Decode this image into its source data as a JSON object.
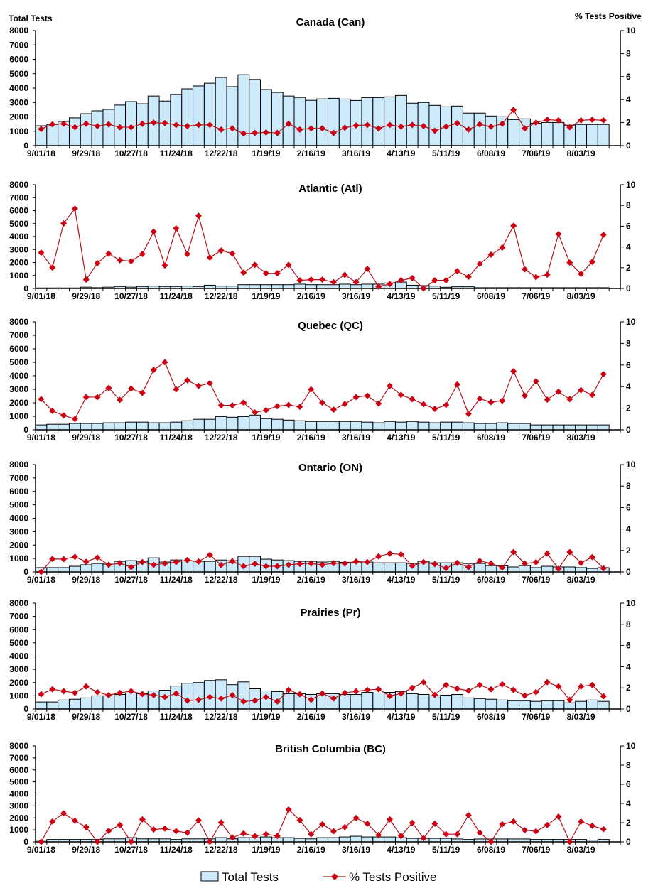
{
  "header": {
    "left_axis_title": "Total Tests",
    "right_axis_title": "% Tests Positive"
  },
  "legend": {
    "bars_label": "Total Tests",
    "line_label": "% Tests Positive"
  },
  "colors": {
    "bar_fill": "#cdeafb",
    "bar_stroke": "#000000",
    "line": "#b5121b",
    "marker": "#cc0011"
  },
  "chart_data": [
    {
      "type": "bar+line",
      "title": "Canada (Can)",
      "x_tick_labels": [
        "9/01/18",
        "9/29/18",
        "10/27/18",
        "11/24/18",
        "12/22/18",
        "1/19/19",
        "2/16/19",
        "3/16/19",
        "4/13/19",
        "5/11/19",
        "6/08/19",
        "7/06/19",
        "8/03/19"
      ],
      "left_ylim": [
        0,
        8000
      ],
      "left_ticks": [
        "0",
        "1000",
        "2000",
        "3000",
        "4000",
        "5000",
        "6000",
        "7000",
        "8000"
      ],
      "right_ylim": [
        0,
        10
      ],
      "right_ticks": [
        "0",
        "2",
        "4",
        "6",
        "8",
        "10"
      ],
      "series": [
        {
          "name": "Total Tests",
          "axis": "left",
          "type": "bar",
          "values": [
            1380,
            1470,
            1680,
            1930,
            2220,
            2420,
            2520,
            2820,
            3060,
            2910,
            3450,
            3100,
            3550,
            3950,
            4150,
            4340,
            4740,
            4100,
            4930,
            4600,
            3900,
            3700,
            3450,
            3350,
            3150,
            3250,
            3290,
            3240,
            3140,
            3340,
            3340,
            3390,
            3490,
            2950,
            3000,
            2800,
            2700,
            2750,
            2260,
            2260,
            2060,
            2010,
            1810,
            1860,
            1560,
            1610,
            1610,
            1420,
            1470,
            1470,
            1470
          ]
        },
        {
          "name": "% Tests Positive",
          "axis": "right",
          "type": "line",
          "values": [
            1.44,
            1.85,
            1.9,
            1.6,
            1.9,
            1.7,
            1.85,
            1.6,
            1.6,
            1.9,
            2.0,
            1.95,
            1.8,
            1.7,
            1.8,
            1.8,
            1.4,
            1.5,
            1.05,
            1.1,
            1.15,
            1.1,
            1.9,
            1.4,
            1.5,
            1.5,
            1.1,
            1.55,
            1.75,
            1.8,
            1.5,
            1.8,
            1.65,
            1.8,
            1.7,
            1.3,
            1.65,
            1.95,
            1.4,
            1.85,
            1.65,
            1.9,
            3.1,
            1.5,
            2.0,
            2.25,
            2.2,
            1.6,
            2.2,
            2.25,
            2.2
          ]
        }
      ]
    },
    {
      "type": "bar+line",
      "title": "Atlantic (Atl)",
      "x_tick_labels": [
        "9/01/18",
        "9/29/18",
        "10/27/18",
        "11/24/18",
        "12/22/18",
        "1/19/19",
        "2/16/19",
        "3/16/19",
        "4/13/19",
        "5/11/19",
        "6/08/19",
        "7/06/19",
        "8/03/19"
      ],
      "left_ylim": [
        0,
        8000
      ],
      "left_ticks": [
        "0",
        "1000",
        "2000",
        "3000",
        "4000",
        "5000",
        "6000",
        "7000",
        "8000"
      ],
      "right_ylim": [
        0,
        10
      ],
      "right_ticks": [
        "0",
        "2",
        "4",
        "6",
        "8",
        "10"
      ],
      "series": [
        {
          "name": "Total Tests",
          "axis": "left",
          "type": "bar",
          "values": [
            40,
            40,
            40,
            40,
            100,
            60,
            100,
            150,
            100,
            150,
            180,
            150,
            150,
            180,
            150,
            250,
            180,
            180,
            290,
            290,
            290,
            290,
            290,
            330,
            290,
            290,
            290,
            330,
            290,
            330,
            330,
            420,
            490,
            250,
            220,
            180,
            90,
            130,
            130,
            60,
            60,
            60,
            60,
            60,
            60,
            60,
            60,
            60,
            60,
            60,
            60
          ]
        },
        {
          "name": "% Tests Positive",
          "axis": "right",
          "type": "line",
          "values": [
            3.45,
            2.0,
            6.27,
            7.69,
            0.85,
            2.43,
            3.36,
            2.72,
            2.63,
            3.32,
            5.47,
            2.22,
            5.79,
            3.32,
            7.0,
            2.97,
            3.66,
            3.36,
            1.53,
            2.27,
            1.46,
            1.46,
            2.27,
            0.78,
            0.85,
            0.85,
            0.6,
            1.3,
            0.6,
            1.88,
            0.18,
            0.43,
            0.78,
            1.0,
            0,
            0.78,
            0.78,
            1.67,
            1.12,
            2.36,
            3.25,
            3.94,
            6.04,
            1.85,
            1.1,
            1.33,
            5.24,
            2.49,
            1.4,
            2.56,
            5.17
          ]
        }
      ]
    },
    {
      "type": "bar+line",
      "title": "Quebec (QC)",
      "x_tick_labels": [
        "9/01/18",
        "9/29/18",
        "10/27/18",
        "11/24/18",
        "12/22/18",
        "1/19/19",
        "2/16/19",
        "3/16/19",
        "4/13/19",
        "5/11/19",
        "6/08/19",
        "7/06/19",
        "8/03/19"
      ],
      "left_ylim": [
        0,
        8000
      ],
      "left_ticks": [
        "0",
        "1000",
        "2000",
        "3000",
        "4000",
        "5000",
        "6000",
        "7000",
        "8000"
      ],
      "right_ylim": [
        0,
        10
      ],
      "right_ticks": [
        "0",
        "2",
        "4",
        "6",
        "8",
        "10"
      ],
      "series": [
        {
          "name": "Total Tests",
          "axis": "left",
          "type": "bar",
          "values": [
            360,
            410,
            410,
            470,
            470,
            470,
            520,
            520,
            570,
            570,
            520,
            520,
            570,
            670,
            780,
            780,
            980,
            930,
            980,
            1090,
            830,
            780,
            720,
            670,
            620,
            620,
            620,
            620,
            620,
            570,
            520,
            620,
            570,
            620,
            570,
            520,
            570,
            570,
            520,
            470,
            470,
            520,
            470,
            470,
            360,
            360,
            360,
            360,
            360,
            360,
            360
          ]
        },
        {
          "name": "% Tests Positive",
          "axis": "right",
          "type": "line",
          "values": [
            2.84,
            1.74,
            1.33,
            1.01,
            3.03,
            3.03,
            3.87,
            2.77,
            3.81,
            3.42,
            5.55,
            6.26,
            3.74,
            4.58,
            4.06,
            4.32,
            2.26,
            2.26,
            2.52,
            1.61,
            1.81,
            2.19,
            2.3,
            2.13,
            3.74,
            2.52,
            1.87,
            2.39,
            3.03,
            3.16,
            2.43,
            4.06,
            3.23,
            2.84,
            2.37,
            1.94,
            2.3,
            4.19,
            1.48,
            2.88,
            2.56,
            2.69,
            5.42,
            3.16,
            4.49,
            2.8,
            3.53,
            2.84,
            3.68,
            3.23,
            5.16
          ]
        }
      ]
    },
    {
      "type": "bar+line",
      "title": "Ontario (ON)",
      "x_tick_labels": [
        "9/01/18",
        "9/29/18",
        "10/27/18",
        "11/24/18",
        "12/22/18",
        "1/19/19",
        "2/16/19",
        "3/16/19",
        "4/13/19",
        "5/11/19",
        "6/08/19",
        "7/06/19",
        "8/03/19"
      ],
      "left_ylim": [
        0,
        8000
      ],
      "left_ticks": [
        "0",
        "1000",
        "2000",
        "3000",
        "4000",
        "5000",
        "6000",
        "7000",
        "8000"
      ],
      "right_ylim": [
        0,
        10
      ],
      "right_ticks": [
        "0",
        "2",
        "4",
        "6",
        "8",
        "10"
      ],
      "series": [
        {
          "name": "Total Tests",
          "axis": "left",
          "type": "bar",
          "values": [
            320,
            320,
            320,
            420,
            530,
            630,
            580,
            790,
            840,
            750,
            1050,
            740,
            890,
            820,
            790,
            790,
            890,
            840,
            1160,
            1160,
            950,
            890,
            840,
            790,
            790,
            740,
            790,
            720,
            680,
            740,
            680,
            680,
            680,
            630,
            790,
            680,
            680,
            680,
            630,
            630,
            470,
            460,
            370,
            470,
            320,
            420,
            370,
            370,
            320,
            260,
            320
          ]
        },
        {
          "name": "% Tests Positive",
          "axis": "right",
          "type": "line",
          "values": [
            0,
            1.21,
            1.19,
            1.41,
            0.95,
            1.34,
            0.66,
            0.81,
            0.44,
            0.92,
            0.66,
            0.79,
            0.92,
            1.1,
            0.97,
            1.58,
            0.64,
            0.99,
            0.53,
            0.75,
            0.53,
            0.53,
            0.66,
            0.75,
            0.79,
            0.66,
            0.81,
            0.79,
            0.97,
            0.92,
            1.45,
            1.71,
            1.63,
            0.57,
            0.92,
            0.73,
            0.35,
            0.84,
            0.44,
            1.03,
            0.79,
            0.4,
            1.85,
            0.79,
            0.9,
            1.71,
            0.29,
            1.85,
            0.84,
            1.38,
            0.33
          ]
        }
      ]
    },
    {
      "type": "bar+line",
      "title": "Prairies (Pr)",
      "x_tick_labels": [
        "9/01/18",
        "9/29/18",
        "10/27/18",
        "11/24/18",
        "12/22/18",
        "1/19/19",
        "2/16/19",
        "3/16/19",
        "4/13/19",
        "5/11/19",
        "6/08/19",
        "7/06/19",
        "8/03/19"
      ],
      "left_ylim": [
        0,
        8000
      ],
      "left_ticks": [
        "0",
        "1000",
        "2000",
        "3000",
        "4000",
        "5000",
        "6000",
        "7000",
        "8000"
      ],
      "right_ylim": [
        0,
        10
      ],
      "right_ticks": [
        "0",
        "2",
        "4",
        "6",
        "8",
        "10"
      ],
      "series": [
        {
          "name": "Total Tests",
          "axis": "left",
          "type": "bar",
          "values": [
            530,
            530,
            680,
            740,
            840,
            1000,
            1000,
            1100,
            1210,
            1160,
            1370,
            1420,
            1740,
            1950,
            2000,
            2160,
            2210,
            1840,
            2050,
            1530,
            1370,
            1320,
            1160,
            1160,
            1100,
            1160,
            1160,
            1100,
            1100,
            1260,
            1210,
            1260,
            1320,
            1160,
            1100,
            1000,
            1050,
            1100,
            840,
            790,
            740,
            680,
            630,
            630,
            580,
            630,
            630,
            470,
            580,
            680,
            580
          ]
        },
        {
          "name": "% Tests Positive",
          "axis": "right",
          "type": "line",
          "values": [
            1.4,
            1.87,
            1.69,
            1.53,
            2.13,
            1.6,
            1.31,
            1.53,
            1.69,
            1.42,
            1.31,
            1.13,
            1.47,
            0.8,
            0.87,
            1.13,
            1.0,
            1.31,
            0.71,
            0.8,
            1.13,
            0.71,
            1.8,
            1.4,
            0.87,
            1.47,
            1.0,
            1.53,
            1.67,
            1.8,
            1.87,
            1.22,
            1.47,
            2.0,
            2.53,
            1.33,
            2.27,
            1.93,
            1.73,
            2.27,
            1.87,
            2.33,
            1.8,
            1.27,
            1.6,
            2.53,
            2.13,
            0.87,
            2.13,
            2.27,
            1.2
          ]
        }
      ]
    },
    {
      "type": "bar+line",
      "title": "British Columbia (BC)",
      "x_tick_labels": [
        "9/01/18",
        "9/29/18",
        "10/27/18",
        "11/24/18",
        "12/22/18",
        "1/19/19",
        "2/16/19",
        "3/16/19",
        "4/13/19",
        "5/11/19",
        "6/08/19",
        "7/06/19",
        "8/03/19"
      ],
      "left_ylim": [
        0,
        8000
      ],
      "left_ticks": [
        "0",
        "1000",
        "2000",
        "3000",
        "4000",
        "5000",
        "6000",
        "7000",
        "8000"
      ],
      "right_ylim": [
        0,
        10
      ],
      "right_ticks": [
        "0",
        "2",
        "4",
        "6",
        "8",
        "10"
      ],
      "series": [
        {
          "name": "Total Tests",
          "axis": "left",
          "type": "bar",
          "values": [
            140,
            200,
            200,
            200,
            200,
            200,
            250,
            250,
            350,
            250,
            250,
            250,
            200,
            250,
            250,
            250,
            350,
            250,
            350,
            350,
            410,
            350,
            350,
            290,
            250,
            350,
            350,
            410,
            470,
            410,
            410,
            410,
            350,
            290,
            290,
            290,
            290,
            240,
            200,
            240,
            240,
            240,
            240,
            240,
            200,
            200,
            200,
            200,
            200,
            140,
            200
          ]
        },
        {
          "name": "% Tests Positive",
          "axis": "right",
          "type": "line",
          "values": [
            0,
            2.12,
            2.98,
            2.2,
            1.54,
            0,
            1.15,
            1.76,
            0,
            2.34,
            1.29,
            1.39,
            1.12,
            0.95,
            2.24,
            0,
            2.02,
            0.44,
            0.88,
            0.59,
            0.8,
            0.61,
            3.37,
            2.27,
            0.8,
            1.83,
            1.1,
            1.54,
            2.49,
            1.9,
            0.71,
            2.34,
            0.61,
            1.98,
            0.37,
            1.9,
            0.8,
            0.8,
            2.78,
            0.95,
            0,
            1.83,
            2.12,
            1.22,
            1.1,
            1.76,
            2.63,
            0,
            2.12,
            1.68,
            1.32
          ]
        }
      ]
    }
  ]
}
